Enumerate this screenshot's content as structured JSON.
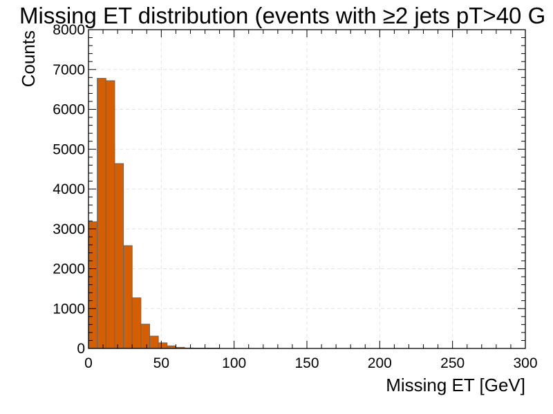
{
  "chart_data": {
    "type": "bar",
    "title": "Missing ET distribution (events with ≥2 jets pT>40 G",
    "xlabel": "Missing ET [GeV]",
    "ylabel": "Counts",
    "xlim": [
      0,
      300
    ],
    "ylim": [
      0,
      8000
    ],
    "xticks": [
      0,
      50,
      100,
      150,
      200,
      250,
      300
    ],
    "yticks": [
      0,
      1000,
      2000,
      3000,
      4000,
      5000,
      6000,
      7000,
      8000
    ],
    "grid": true,
    "bin_width": 6,
    "bin_edges_start": [
      0,
      6,
      12,
      18,
      24,
      30,
      36,
      42,
      48,
      54,
      60,
      66,
      72,
      78,
      84
    ],
    "values": [
      3180,
      6780,
      6720,
      4640,
      2580,
      1270,
      610,
      310,
      140,
      65,
      28,
      12,
      6,
      3,
      1
    ],
    "bar_color": "#d55e00",
    "edge_color": "#666666"
  }
}
